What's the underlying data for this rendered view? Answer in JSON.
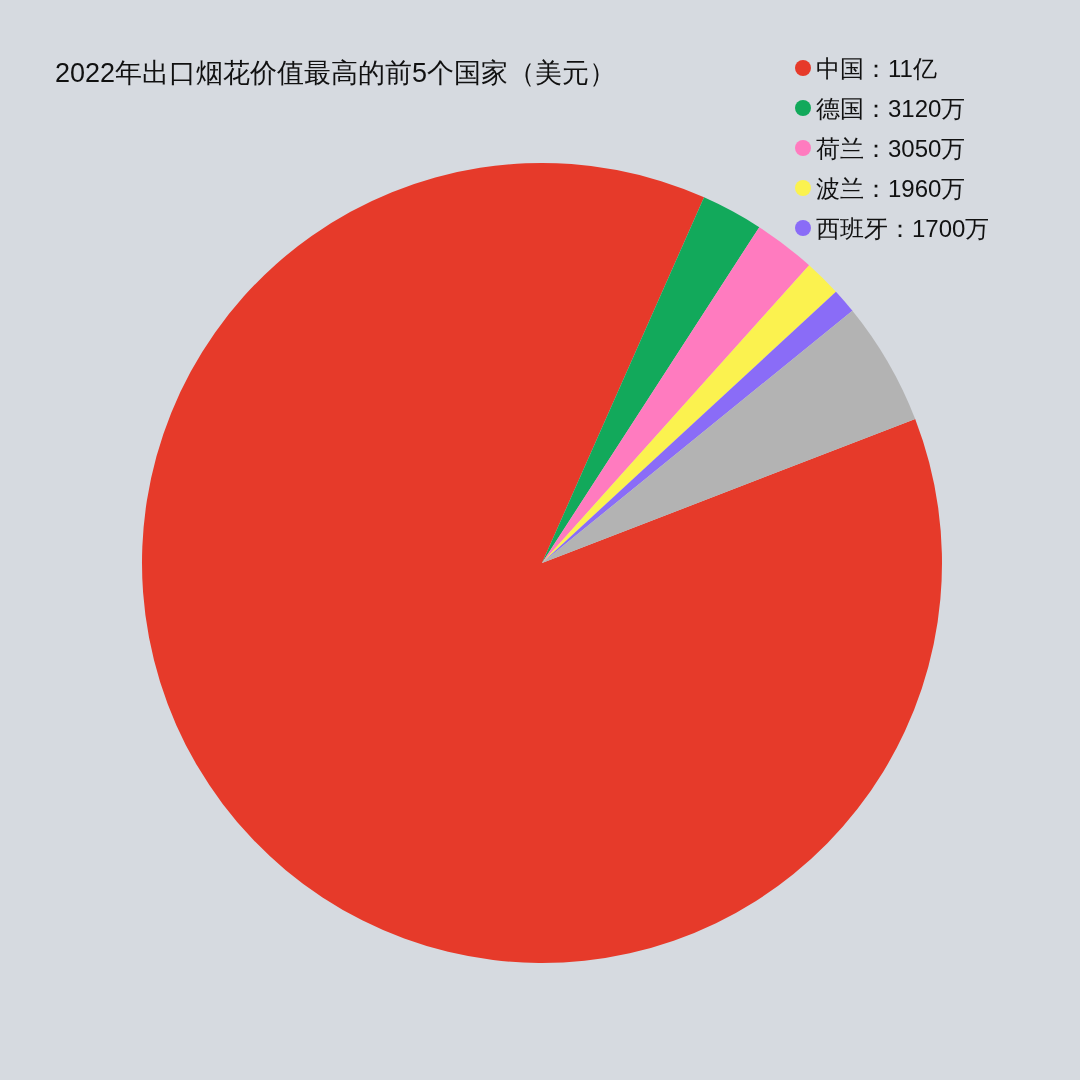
{
  "chart_data": {
    "type": "pie",
    "title": "2022年出口烟花价值最高的前5个国家（美元）",
    "categories": [
      "中国：11亿",
      "德国：3120万",
      "荷兰：3050万",
      "波兰：1960万",
      "西班牙：1700万",
      null
    ],
    "values": [
      87.5,
      2.5,
      2.5,
      1.5,
      1,
      5
    ],
    "colors": [
      "#e63a2a",
      "#12a95b",
      "#ff7bbf",
      "#fbf24f",
      "#8a6cf7",
      "#b3b3b3"
    ],
    "legend": "top right"
  }
}
